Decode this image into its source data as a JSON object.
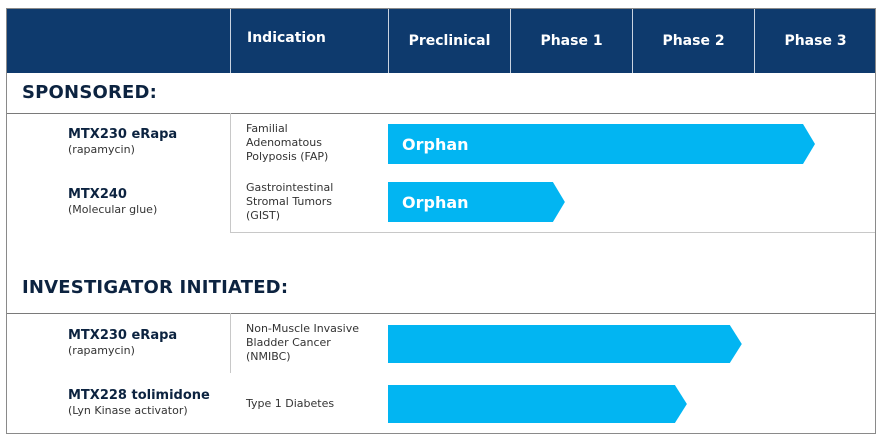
{
  "header": {
    "columns": [
      "",
      "Indication",
      "Preclinical",
      "Phase 1",
      "Phase 2",
      "Phase 3"
    ]
  },
  "colors": {
    "header_bg": "#0e3a6d",
    "bar": "#02b5f2",
    "heading_text": "#0c2340"
  },
  "sections": [
    {
      "title": "SPONSORED:",
      "rows": [
        {
          "name": "MTX230 eRapa",
          "sub": "(rapamycin)",
          "indication": "Familial Adenomatous Polyposis (FAP)",
          "bar_label": "Orphan",
          "progress_phases": 3.5
        },
        {
          "name": "MTX240",
          "sub": "(Molecular glue)",
          "indication": "Gastrointestinal Stromal Tumors (GIST)",
          "bar_label": "Orphan",
          "progress_phases": 1.45
        }
      ]
    },
    {
      "title": "INVESTIGATOR INITIATED:",
      "rows": [
        {
          "name": "MTX230 eRapa",
          "sub": "(rapamycin)",
          "indication": "Non-Muscle Invasive Bladder Cancer (NMIBC)",
          "bar_label": "",
          "progress_phases": 2.9
        },
        {
          "name": "MTX228 tolimidone",
          "sub": "(Lyn Kinase activator)",
          "indication": "Type 1 Diabetes",
          "bar_label": "",
          "progress_phases": 2.45
        }
      ]
    }
  ]
}
